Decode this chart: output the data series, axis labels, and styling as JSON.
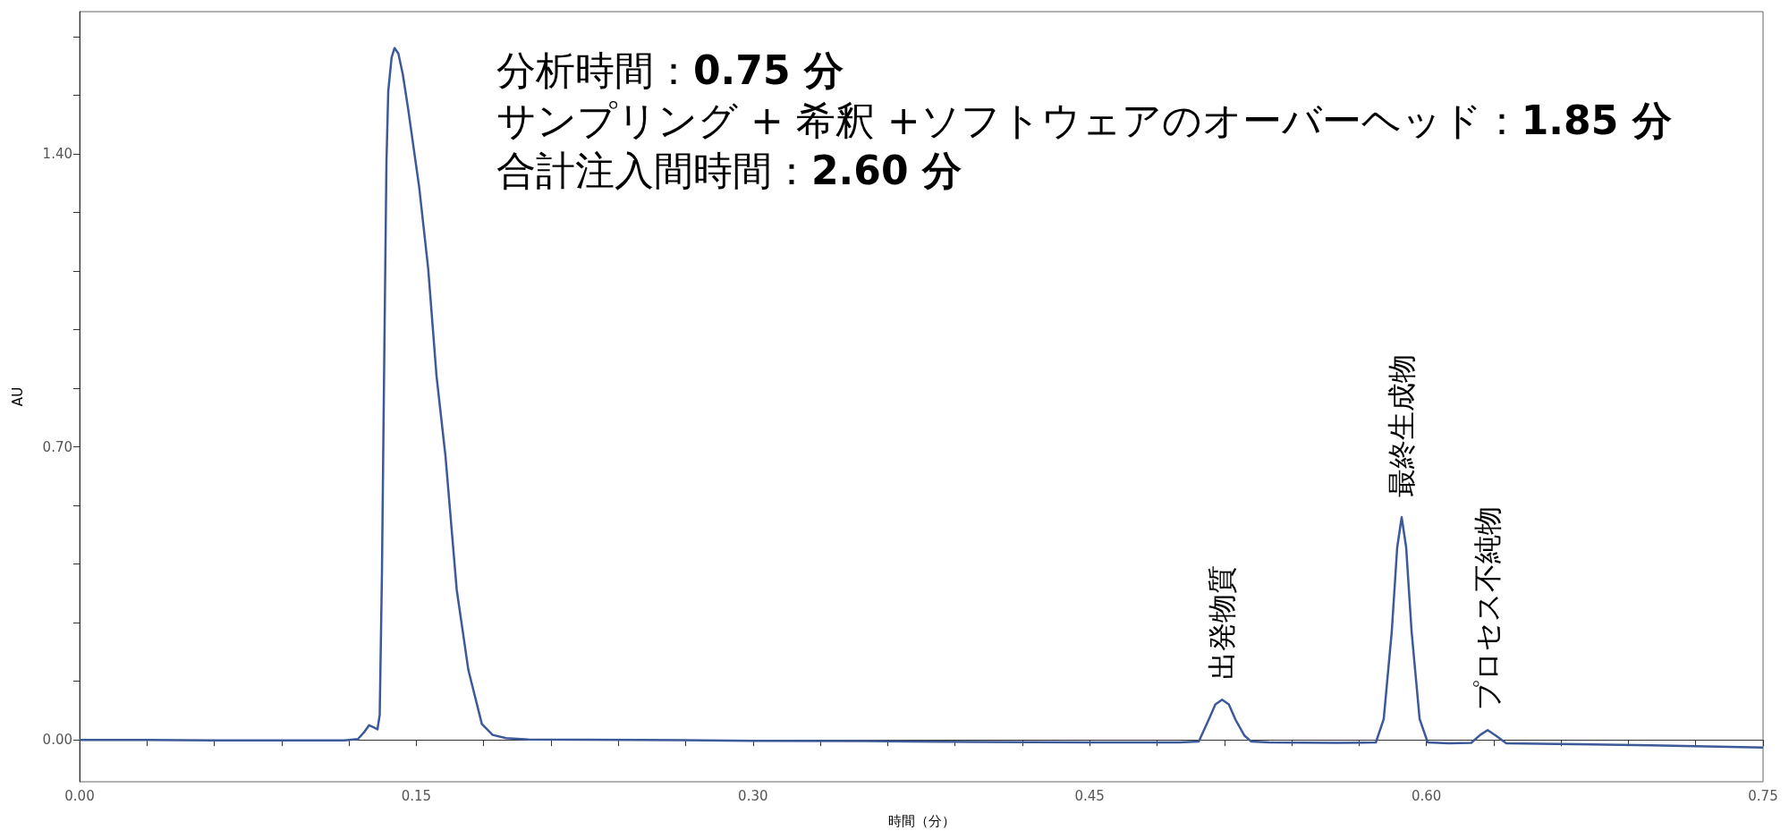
{
  "chart_data": {
    "type": "line",
    "xlabel": "時間（分）",
    "ylabel": "AU",
    "marker": "none",
    "xlim": [
      0,
      0.75
    ],
    "ylim": [
      -0.1,
      1.74
    ],
    "xticks": [
      {
        "value": 0,
        "label": "0.00"
      },
      {
        "value": 0.03,
        "label": null
      },
      {
        "value": 0.06,
        "label": null
      },
      {
        "value": 0.09,
        "label": null
      },
      {
        "value": 0.12,
        "label": null
      },
      {
        "value": 0.15,
        "label": "0.15"
      },
      {
        "value": 0.18,
        "label": null
      },
      {
        "value": 0.21,
        "label": null
      },
      {
        "value": 0.24,
        "label": null
      },
      {
        "value": 0.27,
        "label": null
      },
      {
        "value": 0.3,
        "label": "0.30"
      },
      {
        "value": 0.33,
        "label": null
      },
      {
        "value": 0.36,
        "label": null
      },
      {
        "value": 0.39,
        "label": null
      },
      {
        "value": 0.42,
        "label": null
      },
      {
        "value": 0.45,
        "label": "0.45"
      },
      {
        "value": 0.48,
        "label": null
      },
      {
        "value": 0.51,
        "label": null
      },
      {
        "value": 0.54,
        "label": null
      },
      {
        "value": 0.57,
        "label": null
      },
      {
        "value": 0.6,
        "label": "0.60"
      },
      {
        "value": 0.63,
        "label": null
      },
      {
        "value": 0.66,
        "label": null
      },
      {
        "value": 0.69,
        "label": null
      },
      {
        "value": 0.72,
        "label": null
      },
      {
        "value": 0.75,
        "label": "0.75"
      }
    ],
    "yticks": [
      {
        "value": 0,
        "label": "0.00"
      },
      {
        "value": 0.14,
        "label": null
      },
      {
        "value": 0.28,
        "label": null
      },
      {
        "value": 0.42,
        "label": null
      },
      {
        "value": 0.56,
        "label": null
      },
      {
        "value": 0.7,
        "label": "0.70"
      },
      {
        "value": 0.84,
        "label": null
      },
      {
        "value": 0.98,
        "label": null
      },
      {
        "value": 1.12,
        "label": null
      },
      {
        "value": 1.26,
        "label": null
      },
      {
        "value": 1.4,
        "label": "1.40"
      },
      {
        "value": 1.54,
        "label": null
      },
      {
        "value": 1.68,
        "label": null
      }
    ],
    "x": [
      0,
      0.03,
      0.06,
      0.1,
      0.118,
      0.124,
      0.127,
      0.129,
      0.131,
      0.1327,
      0.1337,
      0.1347,
      0.1357,
      0.1367,
      0.1375,
      0.139,
      0.1403,
      0.142,
      0.144,
      0.1463,
      0.1513,
      0.1553,
      0.159,
      0.163,
      0.166,
      0.168,
      0.1732,
      0.1792,
      0.184,
      0.19,
      0.2,
      0.25,
      0.3,
      0.35,
      0.4,
      0.45,
      0.49,
      0.4986,
      0.503,
      0.506,
      0.509,
      0.512,
      0.515,
      0.519,
      0.522,
      0.53,
      0.56,
      0.5775,
      0.581,
      0.5846,
      0.587,
      0.589,
      0.591,
      0.5934,
      0.597,
      0.6006,
      0.61,
      0.62,
      0.624,
      0.6273,
      0.631,
      0.6356,
      0.65,
      0.7,
      0.75
    ],
    "series": [
      {
        "color": "#3c5a99",
        "values": [
          0,
          0,
          -0.001,
          -0.001,
          -0.001,
          0.002,
          0.02,
          0.035,
          0.03,
          0.025,
          0.06,
          0.4,
          0.9,
          1.38,
          1.55,
          1.63,
          1.653,
          1.64,
          1.59,
          1.51,
          1.32,
          1.126,
          0.87,
          0.678,
          0.487,
          0.359,
          0.167,
          0.038,
          0.012,
          0.004,
          0.001,
          0,
          -0.002,
          -0.003,
          -0.005,
          -0.006,
          -0.006,
          -0.004,
          0.048,
          0.085,
          0.096,
          0.085,
          0.048,
          0.01,
          -0.004,
          -0.006,
          -0.007,
          -0.006,
          0.05,
          0.26,
          0.46,
          0.532,
          0.46,
          0.26,
          0.05,
          -0.006,
          -0.008,
          -0.007,
          0.012,
          0.0235,
          0.01,
          -0.008,
          -0.009,
          -0.013,
          -0.018
        ]
      }
    ],
    "annotations": [
      "分析時間：0.75 分",
      "サンプリング + 希釈 +ソフトウェアのオーバーヘッド：1.85 分",
      "合計注入間時間：2.60 分",
      {
        "text": "出発物質",
        "x": 0.509,
        "y": 0.096
      },
      {
        "text": "最終生成物",
        "x": 0.589,
        "y": 0.532
      },
      {
        "text": "プロセス不純物",
        "x": 0.6273,
        "y": 0.0235
      }
    ]
  }
}
